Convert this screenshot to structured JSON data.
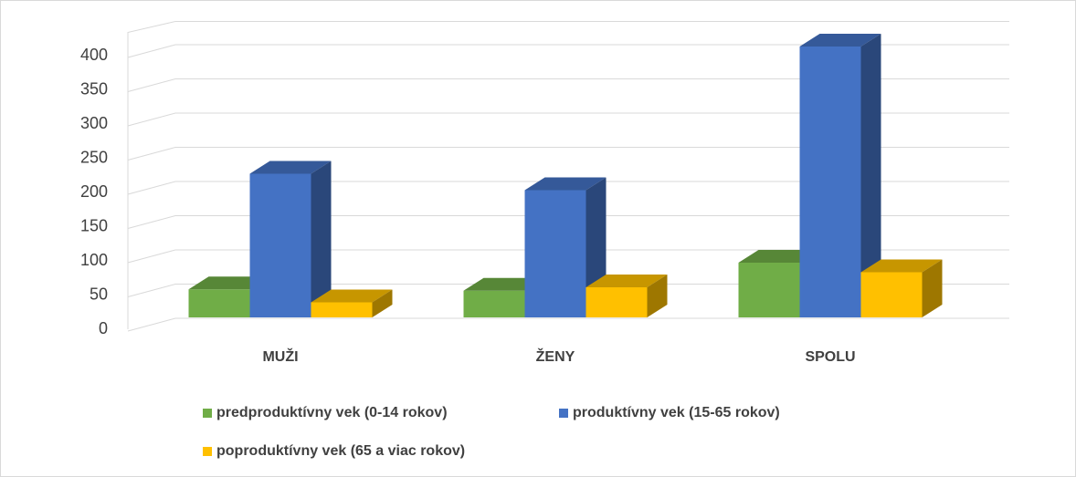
{
  "chart_data": {
    "type": "bar3d",
    "categories": [
      "MUŽI",
      "ŽENY",
      "SPOLU"
    ],
    "series": [
      {
        "name": "predproduktívny vek (0-14 rokov)",
        "color": "#70ad47",
        "values": [
          41,
          39,
          80
        ]
      },
      {
        "name": "produktívny vek (15-65 rokov)",
        "color": "#4472c4",
        "values": [
          210,
          186,
          396
        ]
      },
      {
        "name": "poproduktívny vek (65 a viac rokov)",
        "color": "#ffc000",
        "values": [
          22,
          44,
          66
        ]
      }
    ],
    "ylim": [
      0,
      450
    ],
    "yticks": [
      0,
      50,
      100,
      150,
      200,
      250,
      300,
      350,
      400
    ],
    "grid": true,
    "legend": "bottom"
  }
}
